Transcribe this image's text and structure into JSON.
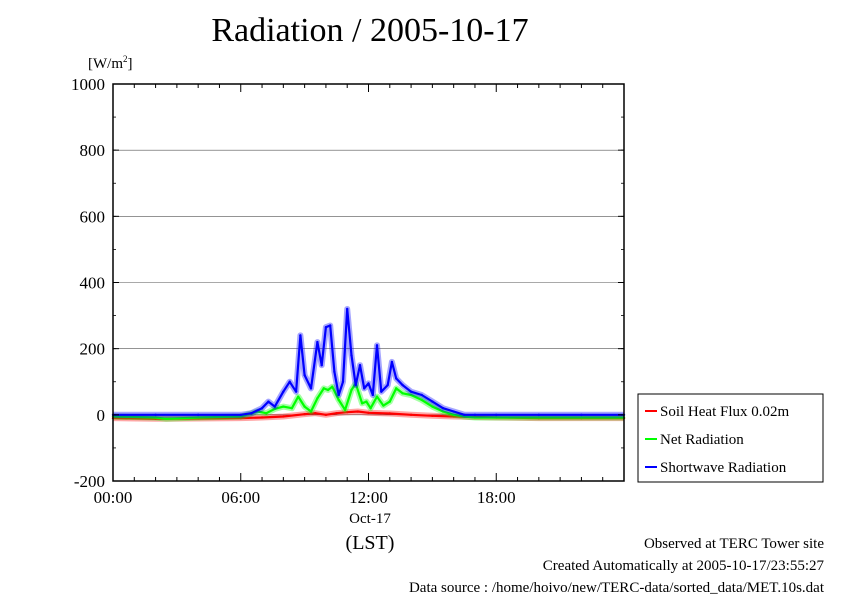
{
  "title": "Radiation / 2005-10-17",
  "unit_prefix": "[W/m",
  "unit_sup": "2",
  "unit_suffix": "]",
  "date_label": "Oct-17",
  "tz_label": "(LST)",
  "info": {
    "site": "Observed at TERC Tower site",
    "created": "Created Automatically at 2005-10-17/23:55:27",
    "source": "Data source : /home/hoivo/new/TERC-data/sorted_data/MET.10s.dat"
  },
  "chart_data": {
    "type": "line",
    "title": "Radiation / 2005-10-17",
    "ylabel": "[W/m2]",
    "xlabel": "(LST)",
    "ylim": [
      -200,
      1000
    ],
    "xlim_hours": [
      0,
      24
    ],
    "yticks": [
      -200,
      0,
      200,
      400,
      600,
      800,
      1000
    ],
    "xticks": [
      {
        "h": 0,
        "label": "00:00"
      },
      {
        "h": 6,
        "label": "06:00"
      },
      {
        "h": 12,
        "label": "12:00"
      },
      {
        "h": 18,
        "label": "18:00"
      }
    ],
    "legend_position": "right",
    "series": [
      {
        "name": "Soil Heat Flux 0.02m",
        "color": "#ff0000",
        "x": [
          0,
          2,
          4,
          6,
          7,
          8,
          9,
          9.5,
          10,
          10.5,
          11,
          11.5,
          12,
          13,
          14,
          15,
          16,
          18,
          20,
          22,
          24
        ],
        "y": [
          -10,
          -12,
          -11,
          -10,
          -8,
          -5,
          2,
          5,
          0,
          5,
          8,
          10,
          6,
          4,
          0,
          -3,
          -5,
          -8,
          -10,
          -10,
          -10
        ]
      },
      {
        "name": "Net Radiation",
        "color": "#00ff00",
        "x": [
          0,
          2,
          2.5,
          4,
          6,
          6.8,
          7.2,
          7.6,
          8,
          8.4,
          8.7,
          9,
          9.3,
          9.6,
          9.9,
          10.1,
          10.3,
          10.6,
          10.9,
          11.2,
          11.4,
          11.7,
          11.9,
          12.1,
          12.4,
          12.7,
          13,
          13.3,
          13.6,
          14,
          14.5,
          15,
          15.5,
          16,
          16.5,
          17,
          18,
          20,
          22,
          24
        ],
        "y": [
          -5,
          -8,
          -12,
          -8,
          -5,
          10,
          5,
          18,
          25,
          20,
          55,
          25,
          10,
          50,
          80,
          75,
          85,
          45,
          15,
          75,
          95,
          35,
          40,
          20,
          55,
          28,
          40,
          80,
          65,
          60,
          45,
          25,
          10,
          0,
          -5,
          -8,
          -8,
          -8,
          -8,
          -8
        ]
      },
      {
        "name": "Shortwave Radiation",
        "color": "#0000ff",
        "x": [
          0,
          2,
          4,
          6,
          6.5,
          7,
          7.3,
          7.6,
          8,
          8.3,
          8.6,
          8.8,
          9,
          9.3,
          9.6,
          9.8,
          10,
          10.2,
          10.4,
          10.6,
          10.8,
          11,
          11.2,
          11.4,
          11.6,
          11.8,
          12,
          12.2,
          12.4,
          12.6,
          12.9,
          13.1,
          13.3,
          13.6,
          14,
          14.5,
          15,
          15.5,
          16,
          16.5,
          17,
          18,
          20,
          22,
          24
        ],
        "y": [
          0,
          0,
          0,
          0,
          5,
          20,
          40,
          25,
          70,
          100,
          70,
          240,
          120,
          80,
          220,
          150,
          265,
          270,
          130,
          60,
          100,
          320,
          180,
          90,
          150,
          80,
          95,
          60,
          210,
          70,
          90,
          160,
          110,
          90,
          70,
          60,
          40,
          20,
          10,
          0,
          0,
          0,
          0,
          0,
          0
        ]
      }
    ]
  }
}
